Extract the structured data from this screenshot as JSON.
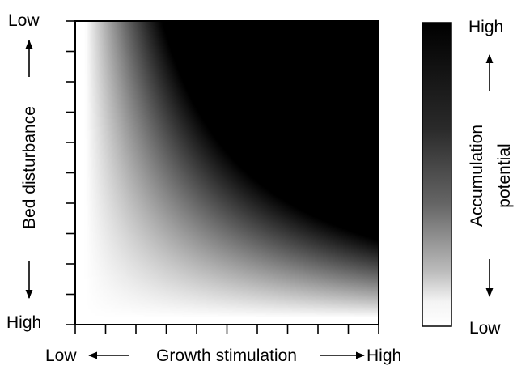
{
  "chart_data": {
    "type": "heatmap",
    "title": "",
    "x_axis": {
      "label": "Growth stimulation",
      "low_label": "Low",
      "high_label": "High",
      "direction": "increasing-right",
      "tick_count": 11
    },
    "y_axis": {
      "label": "Bed disturbance",
      "low_label": "Low",
      "high_label": "High",
      "direction": "low-at-top",
      "tick_count": 11
    },
    "colorbar": {
      "label_line1": "Accumulation",
      "label_line2": "potential",
      "high_label": "High",
      "low_label": "Low",
      "colormap": "grayscale",
      "high_color": "#000000",
      "low_color": "#ffffff"
    },
    "surface": {
      "description": "accumulation potential increases with growth stimulation and with decreasing bed disturbance",
      "x_range": [
        0,
        1
      ],
      "y_range": [
        0,
        1
      ],
      "darkest_corner": "high growth stimulation, low bed disturbance",
      "lightest_corner": "low growth stimulation, high bed disturbance"
    }
  }
}
